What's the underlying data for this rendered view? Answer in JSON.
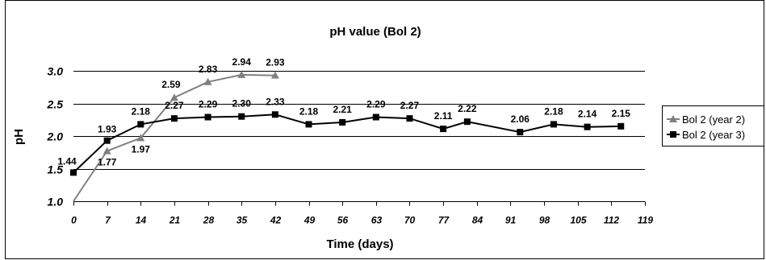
{
  "chart_data": {
    "type": "line",
    "title": "pH value (Bol 2)",
    "xlabel": "Time (days)",
    "ylabel": "pH",
    "xlim": [
      0,
      119
    ],
    "ylim": [
      1.0,
      3.0
    ],
    "x_ticks": [
      "0",
      "7",
      "14",
      "21",
      "28",
      "35",
      "42",
      "49",
      "56",
      "63",
      "70",
      "77",
      "84",
      "91",
      "98",
      "105",
      "112",
      "119"
    ],
    "y_ticks": [
      "1.0",
      "1.5",
      "2.0",
      "2.5",
      "3.0"
    ],
    "grid": "horizontal",
    "legend_position": "right",
    "series": [
      {
        "name": "Bol 2 (year 2)",
        "marker": "triangle",
        "color": "#808080",
        "points": [
          {
            "x": 0,
            "y": 1.0,
            "label": ""
          },
          {
            "x": 7,
            "y": 1.77,
            "label": "1.77"
          },
          {
            "x": 14,
            "y": 1.97,
            "label": "1.97"
          },
          {
            "x": 21,
            "y": 2.59,
            "label": "2.59"
          },
          {
            "x": 28,
            "y": 2.83,
            "label": "2.83"
          },
          {
            "x": 35,
            "y": 2.94,
            "label": "2.94"
          },
          {
            "x": 42,
            "y": 2.93,
            "label": "2.93"
          }
        ]
      },
      {
        "name": "Bol 2 (year 3)",
        "marker": "square",
        "color": "#000000",
        "points": [
          {
            "x": 0,
            "y": 1.44,
            "label": "1.44"
          },
          {
            "x": 7,
            "y": 1.93,
            "label": "1.93"
          },
          {
            "x": 14,
            "y": 2.18,
            "label": "2.18"
          },
          {
            "x": 21,
            "y": 2.27,
            "label": "2.27"
          },
          {
            "x": 28,
            "y": 2.29,
            "label": "2.29"
          },
          {
            "x": 35,
            "y": 2.3,
            "label": "2.30"
          },
          {
            "x": 42,
            "y": 2.33,
            "label": "2.33"
          },
          {
            "x": 49,
            "y": 2.18,
            "label": "2.18"
          },
          {
            "x": 56,
            "y": 2.21,
            "label": "2.21"
          },
          {
            "x": 63,
            "y": 2.29,
            "label": "2.29"
          },
          {
            "x": 70,
            "y": 2.27,
            "label": "2.27"
          },
          {
            "x": 77,
            "y": 2.11,
            "label": "2.11"
          },
          {
            "x": 82,
            "y": 2.22,
            "label": "2.22"
          },
          {
            "x": 93,
            "y": 2.06,
            "label": "2.06"
          },
          {
            "x": 100,
            "y": 2.18,
            "label": "2.18"
          },
          {
            "x": 107,
            "y": 2.14,
            "label": "2.14"
          },
          {
            "x": 114,
            "y": 2.15,
            "label": "2.15"
          }
        ]
      }
    ]
  }
}
